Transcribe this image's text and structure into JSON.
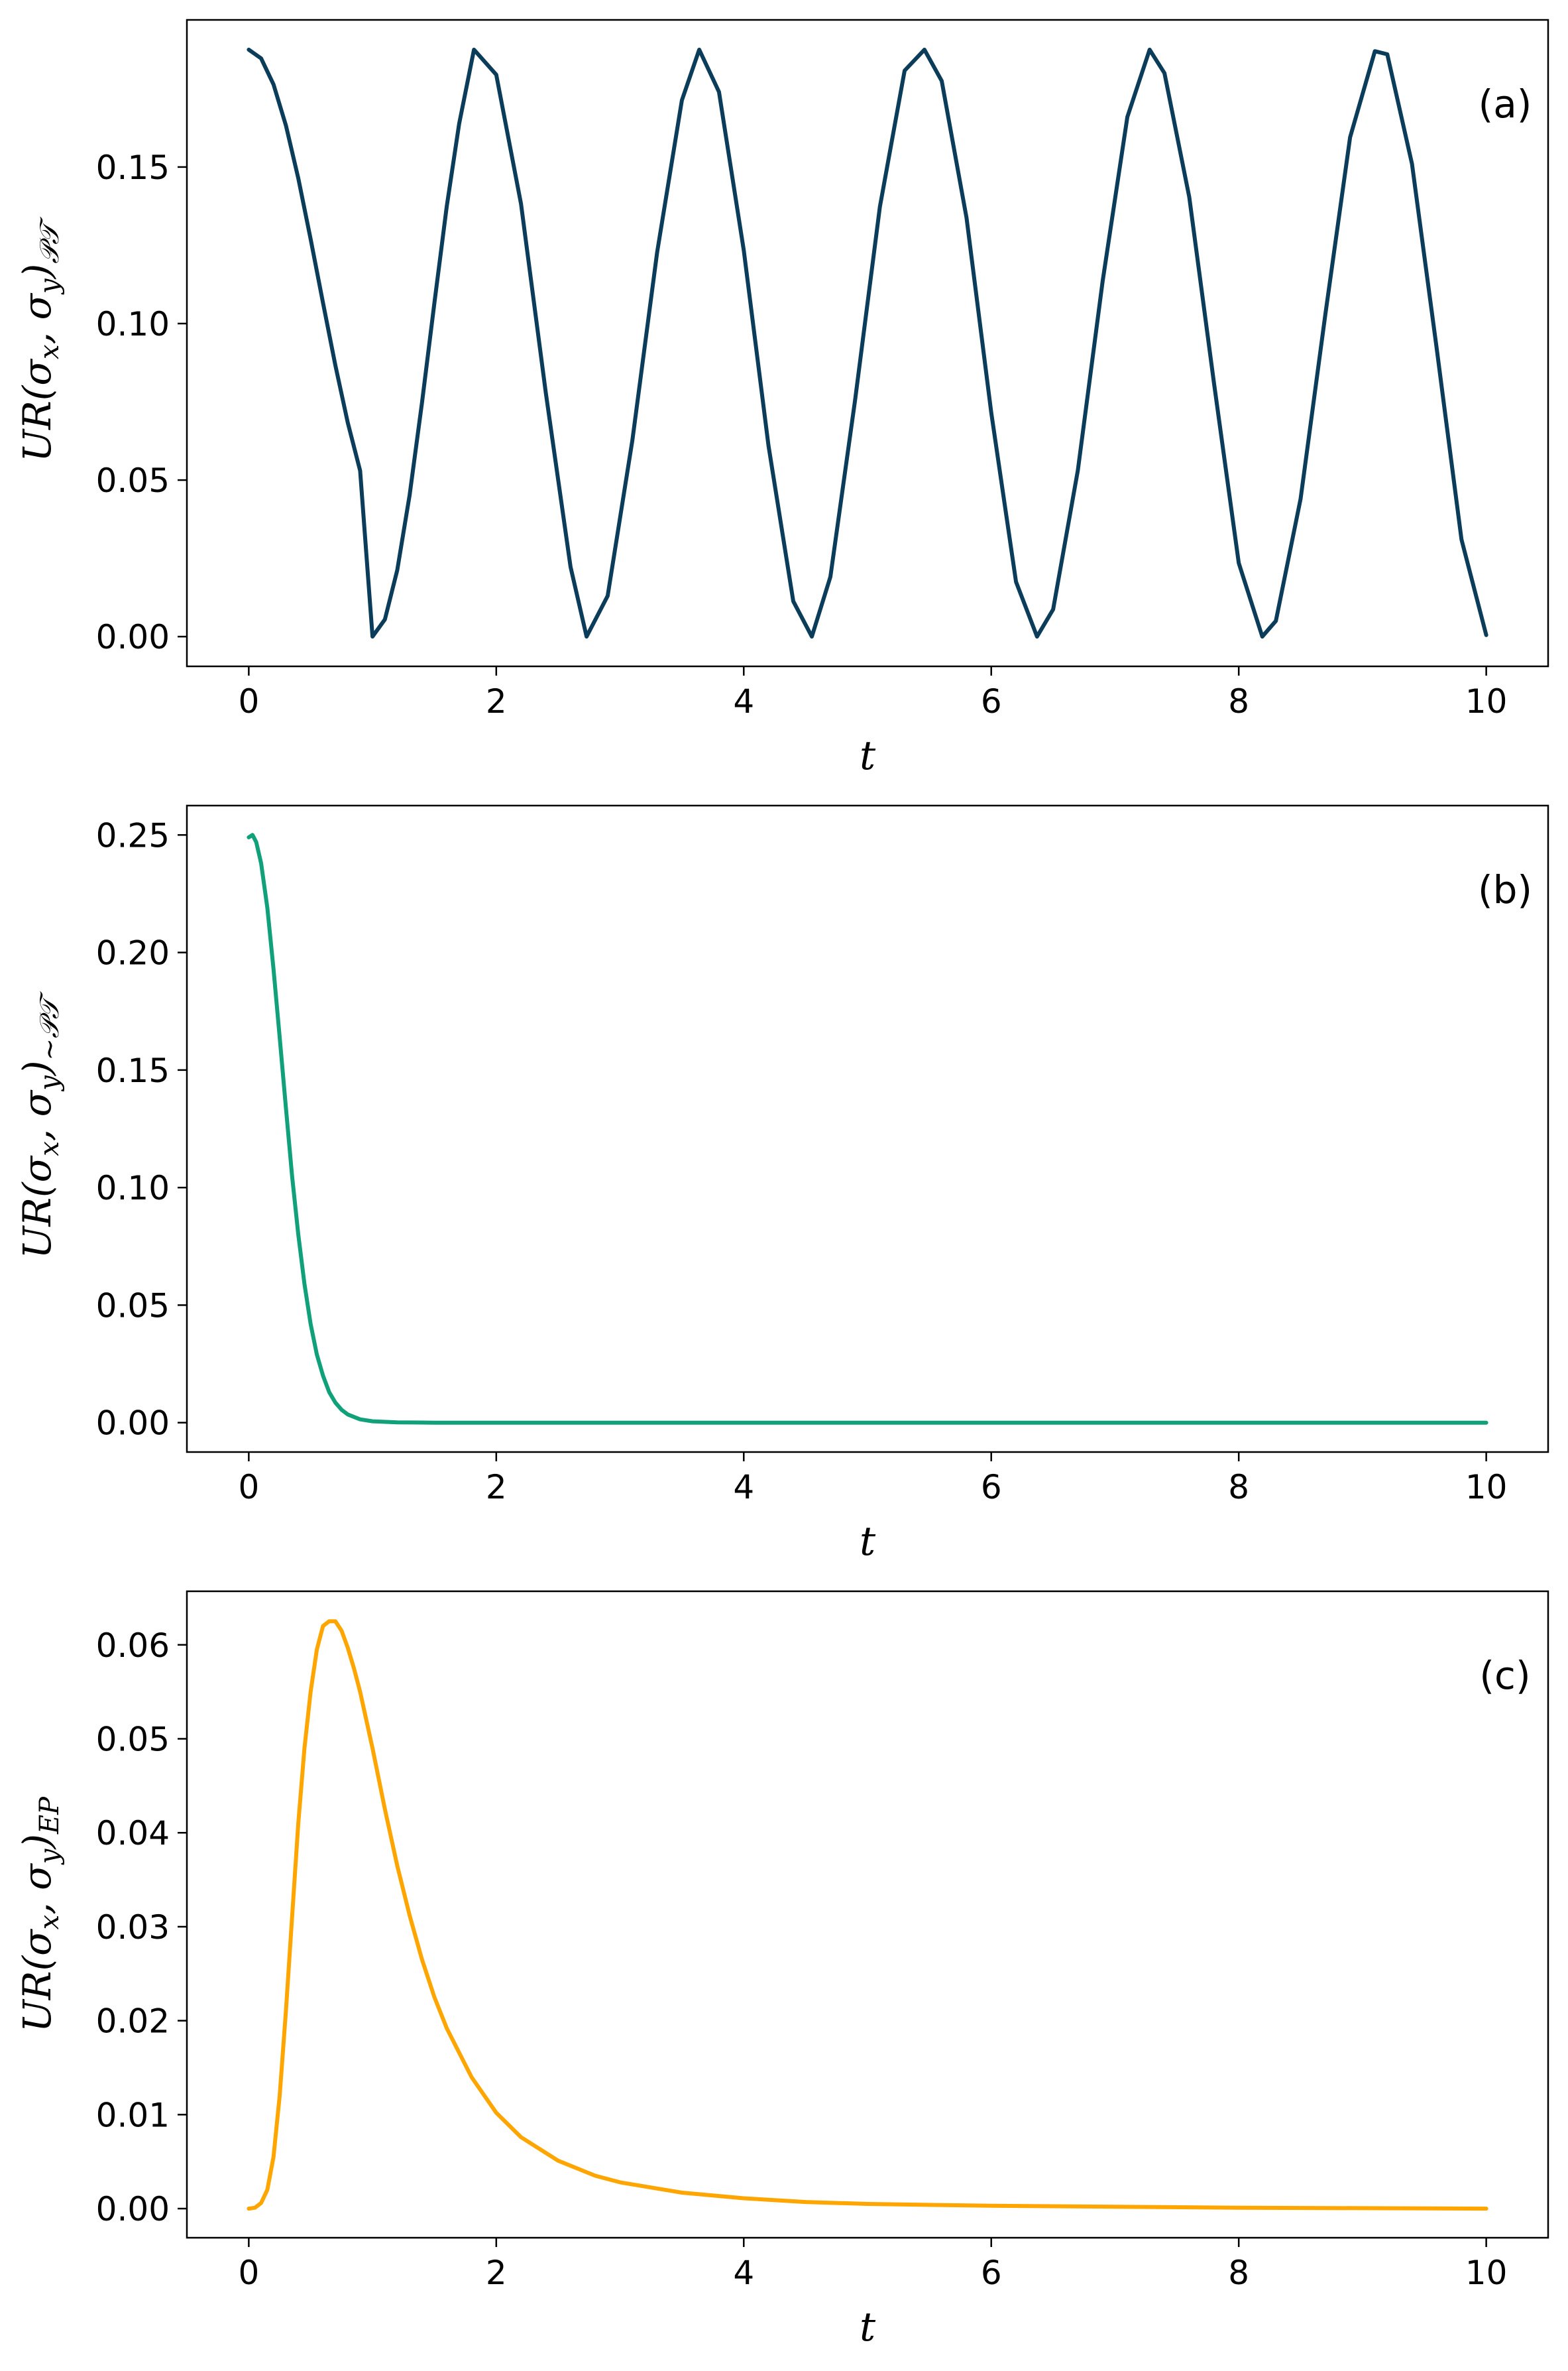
{
  "chart_data": [
    {
      "type": "line",
      "panel_label": "(a)",
      "xlabel": "t",
      "ylabel": {
        "main": "UR(σ",
        "sub1": "x",
        "mid": ", σ",
        "sub2": "y",
        "close": ")",
        "sub3": "𝒫𝒯"
      },
      "xlim": [
        -0.5,
        10.5
      ],
      "ylim": [
        -0.0095,
        0.197
      ],
      "xticks": [
        0,
        2,
        4,
        6,
        8,
        10
      ],
      "xtick_labels": [
        "0",
        "2",
        "4",
        "6",
        "8",
        "10"
      ],
      "yticks": [
        0.0,
        0.05,
        0.1,
        0.15
      ],
      "ytick_labels": [
        "0.00",
        "0.05",
        "0.10",
        "0.15"
      ],
      "color": "#0b3d5b",
      "series": [
        {
          "x": [
            0,
            0.1,
            0.2,
            0.3,
            0.4,
            0.5,
            0.6,
            0.7,
            0.8,
            0.9,
            1.0,
            1.1,
            1.2,
            1.3,
            1.4,
            1.5,
            1.6,
            1.7,
            1.82,
            2.0,
            2.2,
            2.4,
            2.6,
            2.73,
            2.9,
            3.1,
            3.3,
            3.5,
            3.64,
            3.8,
            4.0,
            4.2,
            4.4,
            4.55,
            4.7,
            4.9,
            5.1,
            5.3,
            5.46,
            5.6,
            5.8,
            6.0,
            6.2,
            6.37,
            6.5,
            6.7,
            6.9,
            7.1,
            7.28,
            7.4,
            7.6,
            7.8,
            8.0,
            8.19,
            8.3,
            8.5,
            8.7,
            8.9,
            9.1,
            9.2,
            9.4,
            9.6,
            9.8,
            10.0
          ],
          "values": [
            0.1875,
            0.1847,
            0.1764,
            0.1633,
            0.1464,
            0.127,
            0.1066,
            0.0866,
            0.0684,
            0.053,
            0.0,
            0.0055,
            0.0212,
            0.0452,
            0.0748,
            0.1066,
            0.1374,
            0.1638,
            0.1875,
            0.1795,
            0.1382,
            0.078,
            0.0223,
            0.0,
            0.013,
            0.0627,
            0.1228,
            0.1713,
            0.1875,
            0.174,
            0.1234,
            0.061,
            0.0113,
            0.0,
            0.0191,
            0.0756,
            0.1373,
            0.1808,
            0.1875,
            0.1775,
            0.1338,
            0.0716,
            0.0175,
            0.0,
            0.0087,
            0.0531,
            0.1135,
            0.166,
            0.1875,
            0.18,
            0.1404,
            0.081,
            0.0235,
            0.0,
            0.005,
            0.044,
            0.103,
            0.1595,
            0.187,
            0.186,
            0.151,
            0.092,
            0.031,
            0.0005
          ]
        }
      ]
    },
    {
      "type": "line",
      "panel_label": "(b)",
      "xlabel": "t",
      "ylabel": {
        "main": "UR(σ",
        "sub1": "x",
        "mid": ", σ",
        "sub2": "y",
        "close": ")",
        "sub3": "∼𝒫𝒯"
      },
      "xlim": [
        -0.5,
        10.5
      ],
      "ylim": [
        -0.0125,
        0.2625
      ],
      "xticks": [
        0,
        2,
        4,
        6,
        8,
        10
      ],
      "xtick_labels": [
        "0",
        "2",
        "4",
        "6",
        "8",
        "10"
      ],
      "yticks": [
        0.0,
        0.05,
        0.1,
        0.15,
        0.2,
        0.25
      ],
      "ytick_labels": [
        "0.00",
        "0.05",
        "0.10",
        "0.15",
        "0.20",
        "0.25"
      ],
      "color": "#10a17a",
      "series": [
        {
          "x": [
            0,
            0.03,
            0.06,
            0.1,
            0.15,
            0.2,
            0.25,
            0.3,
            0.35,
            0.4,
            0.45,
            0.5,
            0.55,
            0.6,
            0.65,
            0.7,
            0.75,
            0.8,
            0.9,
            1.0,
            1.2,
            1.5,
            2.0,
            3.0,
            4.0,
            6.0,
            8.0,
            10.0
          ],
          "values": [
            0.249,
            0.25,
            0.247,
            0.238,
            0.219,
            0.193,
            0.164,
            0.134,
            0.105,
            0.08,
            0.059,
            0.042,
            0.029,
            0.02,
            0.013,
            0.0085,
            0.0055,
            0.0035,
            0.0014,
            0.0006,
            0.0001,
            0.0,
            0.0,
            0.0,
            0.0,
            0.0,
            0.0,
            0.0
          ]
        }
      ]
    },
    {
      "type": "line",
      "panel_label": "(c)",
      "xlabel": "t",
      "ylabel": {
        "main": "UR(σ",
        "sub1": "x",
        "mid": ", σ",
        "sub2": "y",
        "close": ")",
        "sub3": "EP"
      },
      "xlim": [
        -0.5,
        10.5
      ],
      "ylim": [
        -0.0031,
        0.0657
      ],
      "xticks": [
        0,
        2,
        4,
        6,
        8,
        10
      ],
      "xtick_labels": [
        "0",
        "2",
        "4",
        "6",
        "8",
        "10"
      ],
      "yticks": [
        0.0,
        0.01,
        0.02,
        0.03,
        0.04,
        0.05,
        0.06
      ],
      "ytick_labels": [
        "0.00",
        "0.01",
        "0.02",
        "0.03",
        "0.04",
        "0.05",
        "0.06"
      ],
      "color": "#ffa500",
      "series": [
        {
          "x": [
            0,
            0.05,
            0.1,
            0.15,
            0.2,
            0.25,
            0.3,
            0.35,
            0.4,
            0.45,
            0.5,
            0.55,
            0.6,
            0.65,
            0.7,
            0.75,
            0.8,
            0.85,
            0.9,
            1.0,
            1.1,
            1.2,
            1.3,
            1.4,
            1.5,
            1.6,
            1.8,
            2.0,
            2.2,
            2.5,
            2.8,
            3.0,
            3.5,
            4.0,
            4.5,
            5.0,
            6.0,
            7.0,
            8.0,
            9.0,
            10.0
          ],
          "values": [
            0.0,
            0.0001,
            0.0006,
            0.002,
            0.0055,
            0.012,
            0.021,
            0.031,
            0.041,
            0.049,
            0.055,
            0.0595,
            0.062,
            0.0625,
            0.0625,
            0.0615,
            0.0597,
            0.0575,
            0.055,
            0.049,
            0.0425,
            0.0365,
            0.0312,
            0.0265,
            0.0225,
            0.0192,
            0.014,
            0.0102,
            0.0076,
            0.0051,
            0.0035,
            0.0028,
            0.0017,
            0.0011,
            0.0007,
            0.0005,
            0.0003,
            0.0002,
            0.0001,
            5e-05,
            0.0
          ]
        }
      ]
    }
  ]
}
